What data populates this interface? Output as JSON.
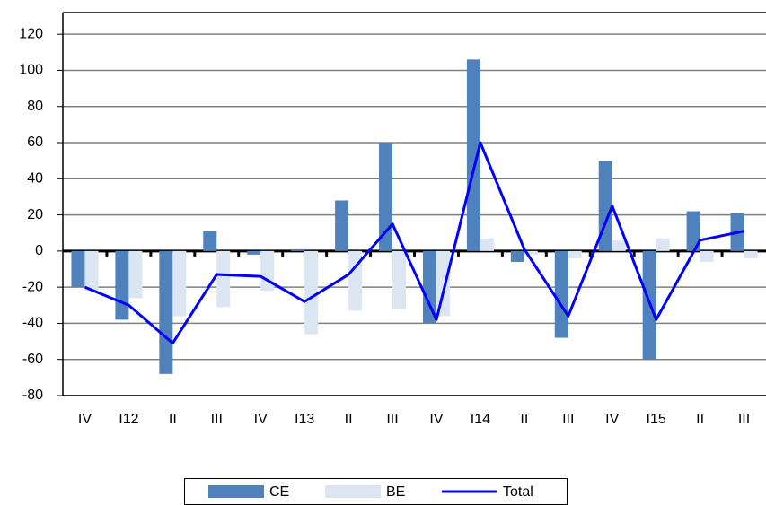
{
  "chart_data": {
    "type": "bar-line",
    "categories": [
      "IV",
      "I12",
      "II",
      "III",
      "IV",
      "I13",
      "II",
      "III",
      "IV",
      "I14",
      "II",
      "III",
      "IV",
      "I15",
      "II",
      "III"
    ],
    "series": [
      {
        "name": "CE",
        "type": "bar",
        "color": "#4f81bd",
        "values": [
          -20,
          -38,
          -68,
          11,
          -2,
          1,
          28,
          60,
          -40,
          106,
          -6,
          -48,
          50,
          -60,
          22,
          21
        ]
      },
      {
        "name": "BE",
        "type": "bar",
        "color": "#dce6f2",
        "values": [
          -22,
          -26,
          -36,
          -31,
          -22,
          -46,
          -33,
          -32,
          -36,
          7,
          -2,
          -4,
          6,
          7,
          -6,
          -4
        ]
      },
      {
        "name": "Total",
        "type": "line",
        "color": "#0000ff",
        "values": [
          -20,
          -30,
          -51,
          -13,
          -14,
          -28,
          -13,
          15,
          -38,
          60,
          1,
          -36,
          25,
          -38,
          6,
          11
        ]
      }
    ],
    "ylim": [
      -80,
      132
    ],
    "yticks": [
      -80,
      -60,
      -40,
      -20,
      0,
      20,
      40,
      60,
      80,
      100,
      120
    ],
    "grid": true,
    "legend": "bottom"
  }
}
